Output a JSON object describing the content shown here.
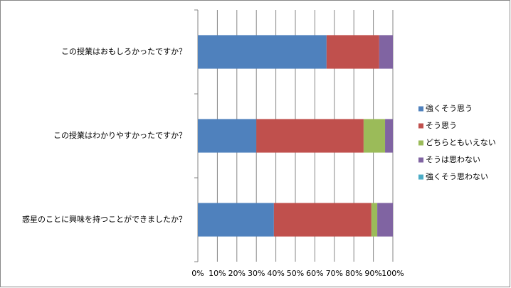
{
  "chart_data": {
    "type": "stacked-bar-horizontal",
    "categories": [
      "この授業はおもしろかったですか？",
      "この授業はわかりやすかったですか？",
      "惑星のことに興味を持つことができましたか？"
    ],
    "series": [
      {
        "name": "強くそう思う",
        "color": "#4f81bd",
        "values": [
          66,
          30,
          39
        ]
      },
      {
        "name": "そう思う",
        "color": "#c0504d",
        "values": [
          27,
          55,
          50
        ]
      },
      {
        "name": "どちらともいえない",
        "color": "#9bbb59",
        "values": [
          0,
          11,
          3
        ]
      },
      {
        "name": "そうは思わない",
        "color": "#8064a2",
        "values": [
          7,
          4,
          8
        ]
      },
      {
        "name": "強くそう思わない",
        "color": "#4bacc6",
        "values": [
          0,
          0,
          0
        ]
      }
    ],
    "xlim": [
      0,
      100
    ],
    "xticks": [
      {
        "value": 0,
        "label": "0%"
      },
      {
        "value": 10,
        "label": "10%"
      },
      {
        "value": 20,
        "label": "20%"
      },
      {
        "value": 30,
        "label": "30%"
      },
      {
        "value": 40,
        "label": "40%"
      },
      {
        "value": 50,
        "label": "50%"
      },
      {
        "value": 60,
        "label": "60%"
      },
      {
        "value": 70,
        "label": "70%"
      },
      {
        "value": 80,
        "label": "80%"
      },
      {
        "value": 90,
        "label": "90%"
      },
      {
        "value": 100,
        "label": "100%"
      }
    ],
    "grid": true,
    "legend": "right"
  }
}
